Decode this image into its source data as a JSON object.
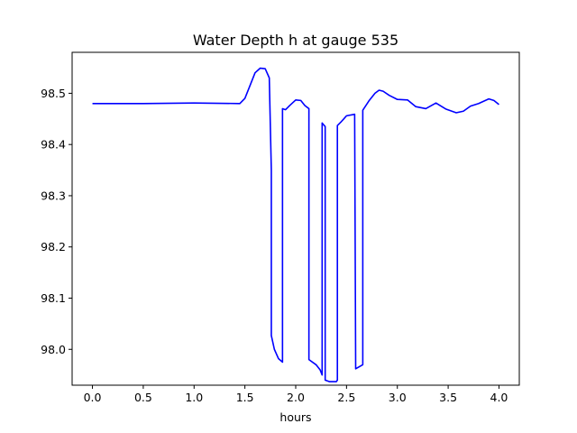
{
  "chart_data": {
    "type": "line",
    "title": "Water Depth h at gauge 535",
    "xlabel": "hours",
    "ylabel": "",
    "xlim": [
      -0.2,
      4.2
    ],
    "ylim": [
      97.93,
      98.58
    ],
    "grid": false,
    "legend": "none",
    "x_ticks": [
      0.0,
      0.5,
      1.0,
      1.5,
      2.0,
      2.5,
      3.0,
      3.5,
      4.0
    ],
    "x_tick_labels": [
      "0.0",
      "0.5",
      "1.0",
      "1.5",
      "2.0",
      "2.5",
      "3.0",
      "3.5",
      "4.0"
    ],
    "y_ticks": [
      98.0,
      98.1,
      98.2,
      98.3,
      98.4,
      98.5
    ],
    "y_tick_labels": [
      "98.0",
      "98.1",
      "98.2",
      "98.3",
      "98.4",
      "98.5"
    ],
    "series": [
      {
        "color": "#0000ff",
        "x": [
          0.0,
          0.5,
          1.0,
          1.45,
          1.5,
          1.55,
          1.6,
          1.65,
          1.7,
          1.74,
          1.76,
          1.76,
          1.79,
          1.83,
          1.87,
          1.87,
          1.9,
          1.94,
          2.0,
          2.05,
          2.09,
          2.13,
          2.13,
          2.2,
          2.24,
          2.26,
          2.26,
          2.29,
          2.29,
          2.33,
          2.4,
          2.41,
          2.41,
          2.45,
          2.5,
          2.58,
          2.58,
          2.59,
          2.66,
          2.66,
          2.72,
          2.78,
          2.82,
          2.86,
          2.92,
          3.0,
          3.1,
          3.18,
          3.28,
          3.38,
          3.48,
          3.58,
          3.65,
          3.72,
          3.8,
          3.9,
          3.95,
          4.0
        ],
        "y": [
          98.48,
          98.48,
          98.481,
          98.48,
          98.49,
          98.515,
          98.54,
          98.549,
          98.548,
          98.53,
          98.35,
          98.027,
          98.0,
          97.982,
          97.975,
          98.47,
          98.468,
          98.476,
          98.487,
          98.486,
          98.476,
          98.47,
          97.98,
          97.97,
          97.96,
          97.95,
          98.442,
          98.435,
          97.94,
          97.937,
          97.937,
          97.94,
          98.437,
          98.445,
          98.456,
          98.459,
          98.459,
          97.962,
          97.97,
          98.467,
          98.485,
          98.5,
          98.506,
          98.504,
          98.496,
          98.488,
          98.487,
          98.474,
          98.47,
          98.481,
          98.469,
          98.462,
          98.465,
          98.475,
          98.48,
          98.489,
          98.486,
          98.478
        ]
      }
    ]
  }
}
